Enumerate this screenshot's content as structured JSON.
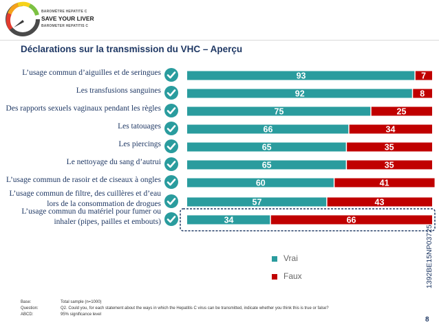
{
  "logo": {
    "line1": "BAROMÈTRE HEPATITE C",
    "line2": "SAVE YOUR LIVER",
    "line3": "BAROMETER HEPATITIS C"
  },
  "title": "Déclarations sur la transmission du VHC – Aperçu",
  "colors": {
    "vrai": "#2a9c9e",
    "faux": "#c00000",
    "text": "#1f3864",
    "check": "#2a9c9e"
  },
  "chart_data": {
    "type": "bar",
    "orientation": "horizontal",
    "stacked": true,
    "categories": [
      "L’usage commun d’aiguilles et de seringues",
      "Les transfusions sanguines",
      "Des rapports sexuels vaginaux pendant les règles",
      "Les tatouages",
      "Les piercings",
      "Le nettoyage du sang d’autrui",
      "L’usage commun de rasoir et de ciseaux à ongles",
      "L’usage commun de filtre, des cuillères et d’eau lors de la consommation de drogues",
      "L’usage commun du matériel pour fumer ou inhaler (pipes, pailles et embouts)"
    ],
    "series": [
      {
        "name": "Vrai",
        "values": [
          93,
          92,
          75,
          66,
          65,
          65,
          60,
          57,
          34
        ]
      },
      {
        "name": "Faux",
        "values": [
          7,
          8,
          25,
          34,
          35,
          35,
          41,
          43,
          66
        ]
      }
    ],
    "xlim": [
      0,
      100
    ],
    "legend": "right",
    "grid": false
  },
  "labels": [
    {
      "lines": [
        "L’usage commun d’aiguilles et de seringues"
      ]
    },
    {
      "lines": [
        "Les transfusions sanguines"
      ]
    },
    {
      "lines": [
        "Des rapports sexuels vaginaux pendant les règles"
      ]
    },
    {
      "lines": [
        "Les tatouages"
      ]
    },
    {
      "lines": [
        "Les piercings"
      ]
    },
    {
      "lines": [
        "Le nettoyage du sang d’autrui"
      ]
    },
    {
      "lines": [
        "L’usage commun de rasoir et de ciseaux à ongles"
      ]
    },
    {
      "lines": [
        "L’usage commun de filtre, des cuillères et d’eau",
        "lors de la consommation de drogues"
      ]
    },
    {
      "lines": [
        "L’usage commun du matériel pour fumer ou",
        "inhaler (pipes, pailles et embouts)"
      ]
    }
  ],
  "legend": {
    "vrai": "Vrai",
    "faux": "Faux"
  },
  "side_code": "1392BE15NP03725",
  "footer": {
    "rows": [
      {
        "key": "Base:",
        "value": "Total sample (n=1000)"
      },
      {
        "key": "Question:",
        "value": "Q2. Could you, for each statement about the ways in which the Hepatitis C virus can be transmitted, indicate whether you think this is true or false?"
      },
      {
        "key": "ABCD:",
        "value": "95% significance level"
      }
    ]
  },
  "page_number": "8",
  "icons": {
    "check": "check-circle-icon",
    "logo": "speedometer-logo-icon"
  }
}
